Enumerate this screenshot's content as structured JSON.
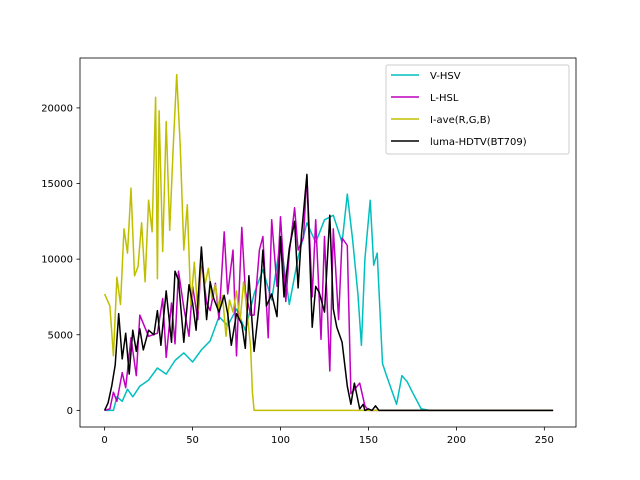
{
  "chart_data": {
    "type": "line",
    "title": "",
    "xlabel": "",
    "ylabel": "",
    "xlim": [
      -14,
      268
    ],
    "ylim": [
      -1100,
      23300
    ],
    "xticks": [
      0,
      50,
      100,
      150,
      200,
      250
    ],
    "yticks": [
      0,
      5000,
      10000,
      15000,
      20000
    ],
    "grid": false,
    "legend_position": "top-right",
    "series": [
      {
        "name": "V-HSV",
        "color": "#00bfbf",
        "x": [
          0,
          5,
          7,
          10,
          13,
          16,
          20,
          25,
          30,
          35,
          40,
          45,
          50,
          55,
          60,
          65,
          70,
          75,
          80,
          85,
          90,
          95,
          100,
          105,
          110,
          115,
          120,
          125,
          130,
          135,
          138,
          141,
          144,
          146,
          148,
          151,
          153,
          155,
          158,
          160,
          163,
          166,
          169,
          172,
          175,
          180,
          185,
          190,
          200,
          220,
          255
        ],
        "y": [
          0,
          0,
          900,
          600,
          1400,
          900,
          1600,
          2000,
          2800,
          2400,
          3300,
          3800,
          3200,
          4000,
          4600,
          6200,
          5600,
          6700,
          5300,
          7700,
          9300,
          7300,
          11200,
          7000,
          10100,
          12400,
          11100,
          12600,
          12900,
          11100,
          14300,
          11300,
          7700,
          4300,
          10000,
          13900,
          9600,
          10400,
          3100,
          2400,
          1400,
          400,
          2300,
          1900,
          1200,
          100,
          0,
          0,
          0,
          0,
          0
        ]
      },
      {
        "name": "L-HSL",
        "color": "#bf00bf",
        "x": [
          0,
          3,
          5,
          7,
          10,
          12,
          15,
          18,
          20,
          25,
          30,
          33,
          35,
          38,
          40,
          42,
          45,
          48,
          50,
          53,
          55,
          58,
          60,
          63,
          65,
          68,
          70,
          73,
          75,
          78,
          80,
          83,
          85,
          88,
          90,
          93,
          95,
          98,
          100,
          103,
          105,
          108,
          110,
          113,
          115,
          118,
          120,
          123,
          125,
          128,
          130,
          133,
          135,
          138,
          140,
          145,
          148,
          150,
          155,
          160,
          180,
          255
        ],
        "y": [
          0,
          100,
          1200,
          600,
          2500,
          1500,
          4800,
          2300,
          6300,
          4900,
          5100,
          7400,
          3500,
          7100,
          4400,
          9200,
          6800,
          4900,
          8200,
          6000,
          10000,
          7100,
          6600,
          8400,
          6000,
          11800,
          7700,
          10600,
          3600,
          12100,
          7900,
          6300,
          6300,
          10600,
          11500,
          4800,
          12600,
          8200,
          12800,
          7200,
          10400,
          13400,
          10600,
          11400,
          15500,
          7500,
          12600,
          4700,
          11500,
          2600,
          12000,
          6000,
          11400,
          10900,
          1100,
          1800,
          300,
          0,
          0,
          0,
          0,
          0
        ]
      },
      {
        "name": "I-ave(R,G,B)",
        "color": "#bfbf00",
        "x": [
          0,
          3,
          5,
          7,
          9,
          11,
          13,
          15,
          17,
          19,
          21,
          23,
          25,
          27,
          29,
          30,
          31,
          33,
          35,
          37,
          39,
          41,
          43,
          45,
          47,
          49,
          51,
          53,
          55,
          57,
          59,
          61,
          63,
          65,
          67,
          69,
          71,
          73,
          75,
          77,
          79,
          81,
          83,
          84,
          85,
          86,
          87,
          90,
          100,
          150,
          200,
          255
        ],
        "y": [
          7700,
          6900,
          3600,
          8800,
          7000,
          12000,
          10400,
          14700,
          8900,
          9500,
          12400,
          8500,
          13900,
          11800,
          20700,
          8700,
          19800,
          10500,
          19100,
          11900,
          17400,
          22200,
          17400,
          10600,
          13600,
          7000,
          9800,
          6600,
          10300,
          8300,
          9400,
          7400,
          8300,
          6700,
          7600,
          4900,
          7300,
          6500,
          7900,
          5900,
          8500,
          6500,
          4200,
          1200,
          0,
          0,
          0,
          0,
          0,
          0,
          0,
          0
        ]
      },
      {
        "name": "luma-HDTV(BT709)",
        "color": "#000000",
        "x": [
          0,
          2,
          4,
          6,
          8,
          10,
          12,
          14,
          16,
          18,
          20,
          22,
          25,
          28,
          30,
          32,
          35,
          38,
          40,
          42,
          45,
          48,
          50,
          52,
          55,
          58,
          60,
          62,
          65,
          68,
          70,
          72,
          75,
          78,
          80,
          82,
          85,
          88,
          90,
          92,
          95,
          98,
          100,
          102,
          105,
          108,
          110,
          112,
          115,
          118,
          120,
          122,
          125,
          128,
          130,
          132,
          135,
          138,
          140,
          142,
          145,
          147,
          148,
          150,
          152,
          154,
          156,
          160,
          170,
          200,
          255
        ],
        "y": [
          0,
          500,
          1600,
          3000,
          6400,
          3400,
          5100,
          2400,
          5300,
          3900,
          5400,
          4000,
          5300,
          5000,
          6600,
          4300,
          7900,
          4500,
          9200,
          8600,
          4500,
          8300,
          7100,
          5300,
          10800,
          6000,
          8500,
          7400,
          6500,
          7600,
          6400,
          4300,
          6400,
          5700,
          4100,
          8900,
          3900,
          7100,
          10600,
          6900,
          7700,
          6200,
          11500,
          7500,
          10700,
          12500,
          8100,
          11700,
          15600,
          5500,
          8200,
          7800,
          6500,
          12900,
          6700,
          5500,
          4500,
          1600,
          400,
          1800,
          100,
          400,
          0,
          100,
          0,
          300,
          0,
          0,
          0,
          0,
          0
        ]
      }
    ]
  }
}
